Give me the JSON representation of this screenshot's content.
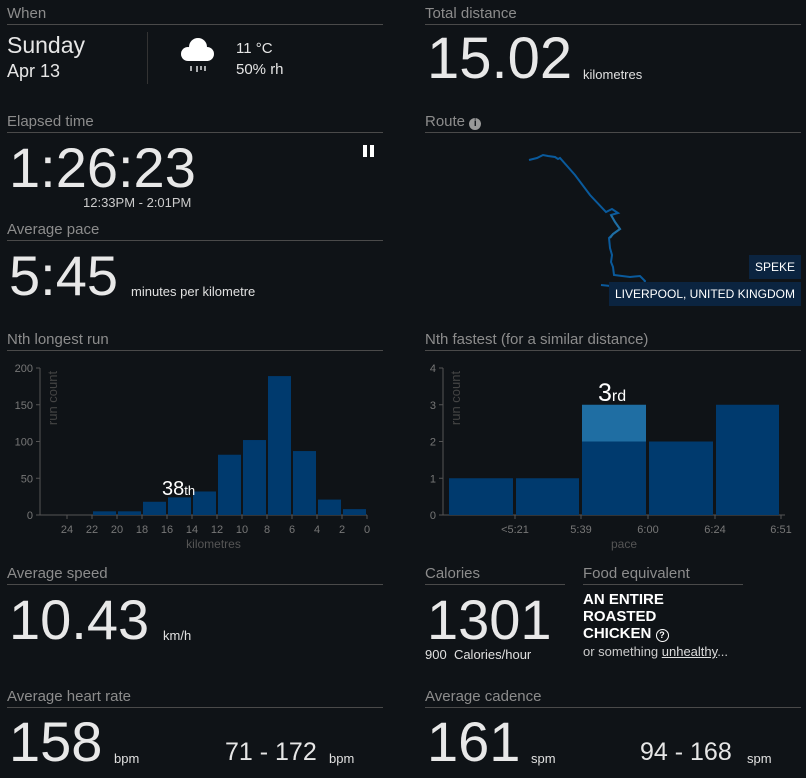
{
  "when": {
    "label": "When",
    "day": "Sunday",
    "date": "Apr 13",
    "temp": "11 °C",
    "humidity": "50% rh",
    "weather_icon": "rain-cloud-icon"
  },
  "distance": {
    "label": "Total distance",
    "value": "15.02",
    "unit": "kilometres"
  },
  "elapsed": {
    "label": "Elapsed time",
    "value": "1:26:23",
    "range": "12:33PM - 2:01PM",
    "pause_icon": "pause-icon"
  },
  "route": {
    "label": "Route",
    "info_icon": "info-icon",
    "places": [
      "SPEKE",
      "LIVERPOOL, UNITED KINGDOM"
    ]
  },
  "pace": {
    "label": "Average pace",
    "value": "5:45",
    "unit": "minutes per kilometre"
  },
  "longest": {
    "label": "Nth longest run",
    "rank": "38",
    "suffix": "th"
  },
  "fastest": {
    "label": "Nth fastest (for a similar distance)",
    "rank": "3",
    "suffix": "rd"
  },
  "speed": {
    "label": "Average speed",
    "value": "10.43",
    "unit": "km/h"
  },
  "calories": {
    "label": "Calories",
    "value": "1301",
    "rate": "900",
    "rate_unit": "Calories/hour"
  },
  "food": {
    "label": "Food equivalent",
    "line1": "AN ENTIRE",
    "line2": "ROASTED",
    "line3": "CHICKEN",
    "help_icon": "help-icon",
    "sub_prefix": "or something ",
    "sub_link": "unhealthy",
    "sub_suffix": "..."
  },
  "heart": {
    "label": "Average heart rate",
    "value": "158",
    "unit": "bpm",
    "range": "71 - 172",
    "range_unit": "bpm"
  },
  "cadence": {
    "label": "Average cadence",
    "value": "161",
    "unit": "spm",
    "range": "94 - 168",
    "range_unit": "spm"
  },
  "colors": {
    "bar": "#003a6e",
    "highlight": "#1f6ea3",
    "route": "#0a5a9c"
  },
  "chart_data": [
    {
      "type": "bar",
      "title": "Nth longest run",
      "xlabel": "kilometres",
      "ylabel": "run count",
      "ylim": [
        0,
        200
      ],
      "yticks": [
        "0",
        "50",
        "100",
        "150",
        "200"
      ],
      "xticks": [
        "24",
        "22",
        "20",
        "18",
        "16",
        "14",
        "12",
        "10",
        "8",
        "6",
        "4",
        "2",
        "0"
      ],
      "bins": [
        [
          22,
          20
        ],
        [
          20,
          18
        ],
        [
          18,
          16
        ],
        [
          16,
          14
        ],
        [
          14,
          12
        ],
        [
          12,
          10
        ],
        [
          10,
          8
        ],
        [
          8,
          6
        ],
        [
          6,
          4
        ],
        [
          4,
          2
        ],
        [
          2,
          0
        ]
      ],
      "values": [
        5,
        5,
        18,
        24,
        32,
        82,
        102,
        189,
        87,
        21,
        8
      ],
      "highlight_index": 3
    },
    {
      "type": "bar",
      "title": "Nth fastest (for a similar distance)",
      "xlabel": "pace",
      "ylabel": "run count",
      "ylim": [
        0,
        4
      ],
      "yticks": [
        "0",
        "1",
        "2",
        "3",
        "4"
      ],
      "xticks": [
        "<5:21",
        "5:39",
        "6:00",
        "6:24",
        "6:51"
      ],
      "categories": [
        "<5:21",
        "5:21-5:39",
        "5:39-6:00",
        "6:00-6:24",
        "6:24-6:51"
      ],
      "values": [
        1,
        1,
        3,
        2,
        3
      ],
      "highlight_index": 2,
      "highlight_count": 1
    }
  ]
}
